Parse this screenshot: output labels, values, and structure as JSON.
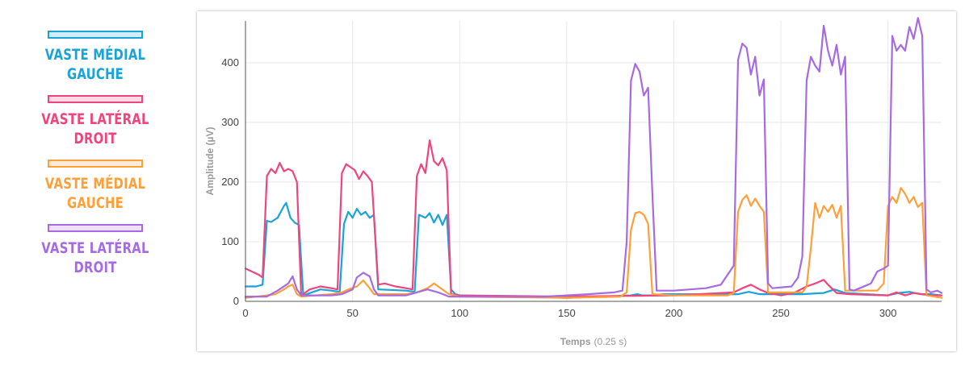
{
  "legend": [
    {
      "line1": "VASTE MÉDIAL",
      "line2": "GAUCHE",
      "color": "#1aa3d9"
    },
    {
      "line1": "VASTE LATÉRAL",
      "line2": "DROIT",
      "color": "#f0457c"
    },
    {
      "line1": "VASTE MÉDIAL",
      "line2": "GAUCHE",
      "color": "#ff9f3a"
    },
    {
      "line1": "VASTE LATÉRAL",
      "line2": "DROIT",
      "color": "#a66be3"
    }
  ],
  "chart_data": {
    "type": "line",
    "xlabel": "Temps",
    "xlabel_unit": "(0.25 s)",
    "ylabel": "Amplitude (µV)",
    "xlim": [
      0,
      325
    ],
    "ylim": [
      0,
      470
    ],
    "xticks": [
      0,
      50,
      100,
      150,
      200,
      250,
      300
    ],
    "yticks": [
      0,
      100,
      200,
      300,
      400
    ],
    "grid": true,
    "series": [
      {
        "name": "VASTE MÉDIAL GAUCHE",
        "color": "#1aa3d9",
        "x": [
          0,
          5,
          8,
          10,
          12,
          15,
          18,
          19,
          21,
          23,
          25,
          27,
          35,
          40,
          44,
          46,
          48,
          50,
          52,
          54,
          56,
          58,
          60,
          62,
          75,
          79,
          81,
          84,
          86,
          88,
          90,
          92,
          94,
          96,
          98,
          100,
          150,
          180,
          183,
          185,
          187,
          189,
          195,
          230,
          235,
          240,
          260,
          270,
          275,
          280,
          300,
          305,
          310,
          315,
          320,
          325
        ],
        "y": [
          25,
          25,
          28,
          135,
          133,
          140,
          160,
          165,
          140,
          132,
          128,
          10,
          20,
          18,
          16,
          130,
          150,
          140,
          155,
          145,
          150,
          140,
          145,
          20,
          18,
          16,
          145,
          140,
          148,
          132,
          145,
          128,
          145,
          20,
          12,
          10,
          6,
          10,
          12,
          10,
          10,
          10,
          12,
          12,
          16,
          12,
          12,
          14,
          20,
          14,
          10,
          14,
          16,
          12,
          12,
          10
        ]
      },
      {
        "name": "VASTE LATÉRAL DROIT",
        "color": "#f0457c",
        "x": [
          0,
          3,
          6,
          8,
          10,
          12,
          14,
          16,
          18,
          20,
          22,
          24,
          26,
          30,
          35,
          40,
          43,
          45,
          47,
          49,
          51,
          53,
          55,
          57,
          59,
          62,
          65,
          70,
          75,
          78,
          80,
          82,
          84,
          86,
          88,
          90,
          92,
          94,
          96,
          100,
          150,
          200,
          228,
          232,
          236,
          240,
          244,
          250,
          256,
          262,
          266,
          270,
          272,
          276,
          282,
          300,
          304,
          308,
          312,
          320,
          325
        ],
        "y": [
          55,
          50,
          45,
          40,
          210,
          222,
          215,
          232,
          218,
          222,
          218,
          200,
          10,
          20,
          25,
          22,
          20,
          215,
          230,
          225,
          220,
          205,
          218,
          210,
          200,
          28,
          30,
          25,
          22,
          20,
          210,
          230,
          215,
          270,
          235,
          228,
          240,
          220,
          12,
          10,
          8,
          10,
          15,
          22,
          28,
          20,
          14,
          10,
          14,
          25,
          30,
          36,
          28,
          14,
          12,
          10,
          15,
          10,
          14,
          10,
          10
        ]
      },
      {
        "name": "VASTE MÉDIAL GAUCHE",
        "color": "#ff9f3a",
        "x": [
          0,
          10,
          14,
          18,
          20,
          22,
          24,
          26,
          40,
          45,
          48,
          52,
          55,
          58,
          60,
          75,
          80,
          85,
          88,
          90,
          95,
          100,
          150,
          175,
          178,
          180,
          182,
          184,
          186,
          188,
          190,
          200,
          225,
          228,
          230,
          232,
          234,
          236,
          238,
          240,
          242,
          244,
          260,
          262,
          264,
          266,
          268,
          270,
          272,
          274,
          276,
          278,
          280,
          295,
          298,
          300,
          302,
          304,
          306,
          308,
          310,
          312,
          314,
          316,
          318,
          325
        ],
        "y": [
          6,
          10,
          12,
          20,
          25,
          28,
          12,
          8,
          12,
          15,
          20,
          25,
          35,
          22,
          12,
          12,
          15,
          22,
          30,
          25,
          12,
          8,
          6,
          8,
          15,
          120,
          148,
          150,
          145,
          130,
          12,
          10,
          10,
          14,
          150,
          170,
          178,
          160,
          172,
          160,
          150,
          15,
          15,
          25,
          90,
          165,
          140,
          160,
          150,
          162,
          140,
          160,
          18,
          18,
          30,
          160,
          175,
          165,
          190,
          180,
          165,
          175,
          158,
          165,
          10,
          6
        ]
      },
      {
        "name": "VASTE LATÉRAL DROIT",
        "color": "#a66be3",
        "x": [
          0,
          10,
          15,
          20,
          22,
          24,
          26,
          40,
          45,
          50,
          52,
          55,
          58,
          60,
          62,
          75,
          80,
          85,
          90,
          95,
          100,
          140,
          160,
          172,
          176,
          178,
          180,
          182,
          184,
          186,
          188,
          190,
          192,
          195,
          200,
          215,
          222,
          228,
          230,
          232,
          234,
          236,
          238,
          240,
          242,
          244,
          246,
          255,
          258,
          260,
          262,
          264,
          266,
          268,
          270,
          272,
          274,
          276,
          278,
          280,
          282,
          284,
          292,
          295,
          298,
          300,
          302,
          304,
          306,
          308,
          310,
          312,
          314,
          316,
          318,
          320,
          323,
          325
        ],
        "y": [
          8,
          8,
          18,
          30,
          42,
          20,
          10,
          10,
          12,
          20,
          40,
          48,
          42,
          20,
          10,
          10,
          15,
          20,
          15,
          8,
          8,
          8,
          12,
          15,
          18,
          100,
          370,
          398,
          385,
          345,
          358,
          180,
          18,
          18,
          18,
          22,
          28,
          60,
          405,
          432,
          425,
          380,
          410,
          345,
          372,
          30,
          22,
          25,
          40,
          75,
          370,
          410,
          395,
          385,
          462,
          420,
          395,
          430,
          380,
          410,
          20,
          18,
          30,
          50,
          55,
          60,
          445,
          420,
          430,
          420,
          460,
          440,
          475,
          445,
          20,
          15,
          18,
          14
        ]
      }
    ]
  }
}
